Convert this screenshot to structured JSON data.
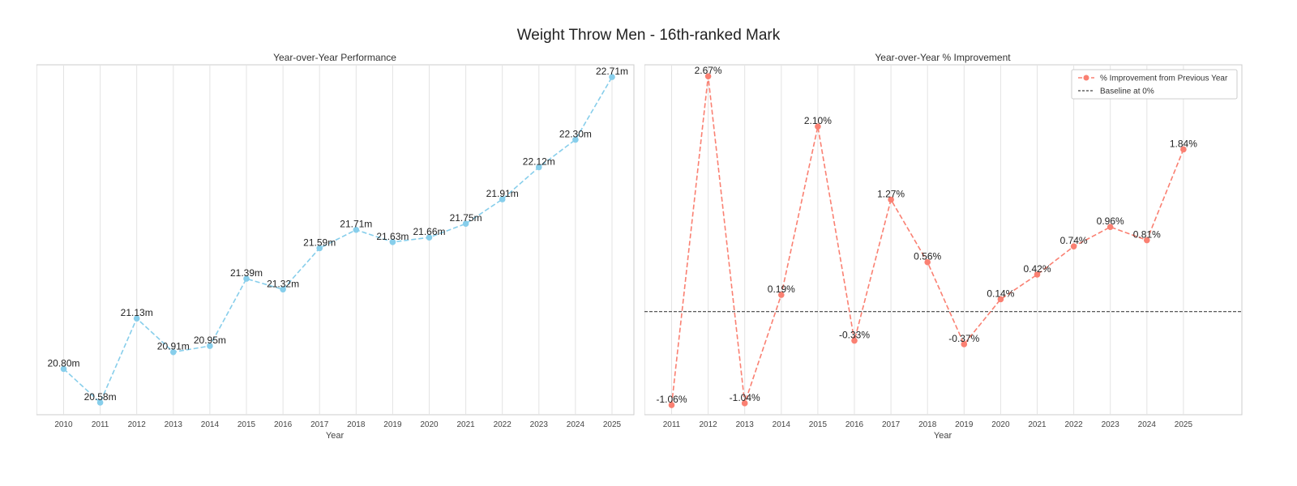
{
  "title": "Weight Throw Men - 16th-ranked Mark",
  "colors": {
    "left_series": "#87ceeb",
    "right_series": "#fa8072",
    "baseline": "#444444"
  },
  "chart_data": [
    {
      "type": "line",
      "title": "Year-over-Year Performance",
      "xlabel": "Year",
      "ylabel": "",
      "ylim": [
        20.5,
        22.79
      ],
      "grid": "vertical",
      "x": [
        2010,
        2011,
        2012,
        2013,
        2014,
        2015,
        2016,
        2017,
        2018,
        2019,
        2020,
        2021,
        2022,
        2023,
        2024,
        2025
      ],
      "y": [
        20.8,
        20.58,
        21.13,
        20.91,
        20.95,
        21.39,
        21.32,
        21.59,
        21.71,
        21.63,
        21.66,
        21.75,
        21.91,
        22.12,
        22.3,
        22.71
      ],
      "data_labels": [
        "20.80m",
        "20.58m",
        "21.13m",
        "20.91m",
        "20.95m",
        "21.39m",
        "21.32m",
        "21.59m",
        "21.71m",
        "21.63m",
        "21.66m",
        "21.75m",
        "21.91m",
        "22.12m",
        "22.30m",
        "22.71m"
      ]
    },
    {
      "type": "line",
      "title": "Year-over-Year % Improvement",
      "xlabel": "Year",
      "ylabel": "",
      "ylim": [
        -1.17,
        2.8
      ],
      "grid": "vertical",
      "legend_position": "top-right",
      "x": [
        2011,
        2012,
        2013,
        2014,
        2015,
        2016,
        2017,
        2018,
        2019,
        2020,
        2021,
        2022,
        2023,
        2024,
        2025
      ],
      "series": [
        {
          "name": "% Improvement from Previous Year",
          "values": [
            -1.06,
            2.67,
            -1.04,
            0.19,
            2.1,
            -0.33,
            1.27,
            0.56,
            -0.37,
            0.14,
            0.42,
            0.74,
            0.96,
            0.81,
            1.84
          ]
        }
      ],
      "baseline": {
        "name": "Baseline at 0%",
        "value": 0
      },
      "data_labels": [
        "-1.06%",
        "2.67%",
        "-1.04%",
        "0.19%",
        "2.10%",
        "-0.33%",
        "1.27%",
        "0.56%",
        "-0.37%",
        "0.14%",
        "0.42%",
        "0.74%",
        "0.96%",
        "0.81%",
        "1.84%"
      ]
    }
  ]
}
